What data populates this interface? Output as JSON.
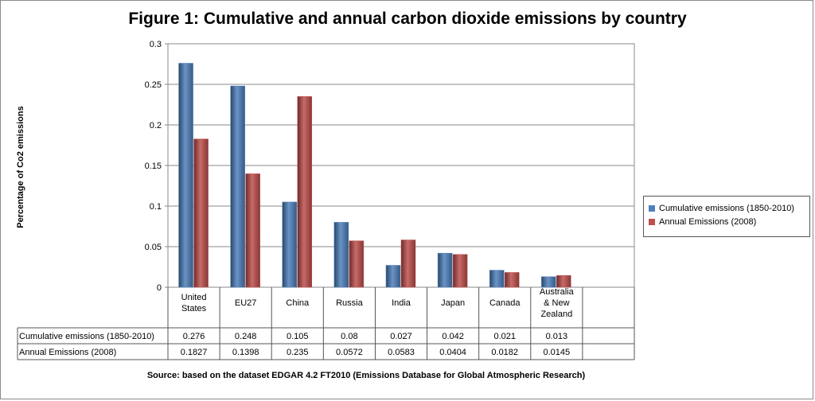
{
  "chart_data": {
    "type": "bar",
    "title": "Figure 1: Cumulative and annual carbon dioxide emissions by country",
    "ylabel": "Percentage of Co2 emissions",
    "xlabel": "",
    "ylim": [
      0,
      0.3
    ],
    "yticks": [
      "0",
      "0.05",
      "0.1",
      "0.15",
      "0.2",
      "0.25",
      "0.3"
    ],
    "categories": [
      "United States",
      "EU27",
      "China",
      "Russia",
      "India",
      "Japan",
      "Canada",
      "Australia & New Zealand"
    ],
    "series": [
      {
        "name": "Cumulative emissions (1850-2010)",
        "color": "#4f81bd",
        "values": [
          0.276,
          0.248,
          0.105,
          0.08,
          0.027,
          0.042,
          0.021,
          0.013
        ],
        "labels": [
          "0.276",
          "0.248",
          "0.105",
          "0.08",
          "0.027",
          "0.042",
          "0.021",
          "0.013"
        ]
      },
      {
        "name": "Annual Emissions (2008)",
        "color": "#c0504d",
        "values": [
          0.1827,
          0.1398,
          0.235,
          0.0572,
          0.0583,
          0.0404,
          0.0182,
          0.0145
        ],
        "labels": [
          "0.1827",
          "0.1398",
          "0.235",
          "0.0572",
          "0.0583",
          "0.0404",
          "0.0182",
          "0.0145"
        ]
      }
    ],
    "grid": true,
    "legend_position": "right",
    "data_table": true
  },
  "source_note": "Source: based on the dataset EDGAR 4.2 FT2010 (Emissions Database for Global Atmospheric Research)"
}
